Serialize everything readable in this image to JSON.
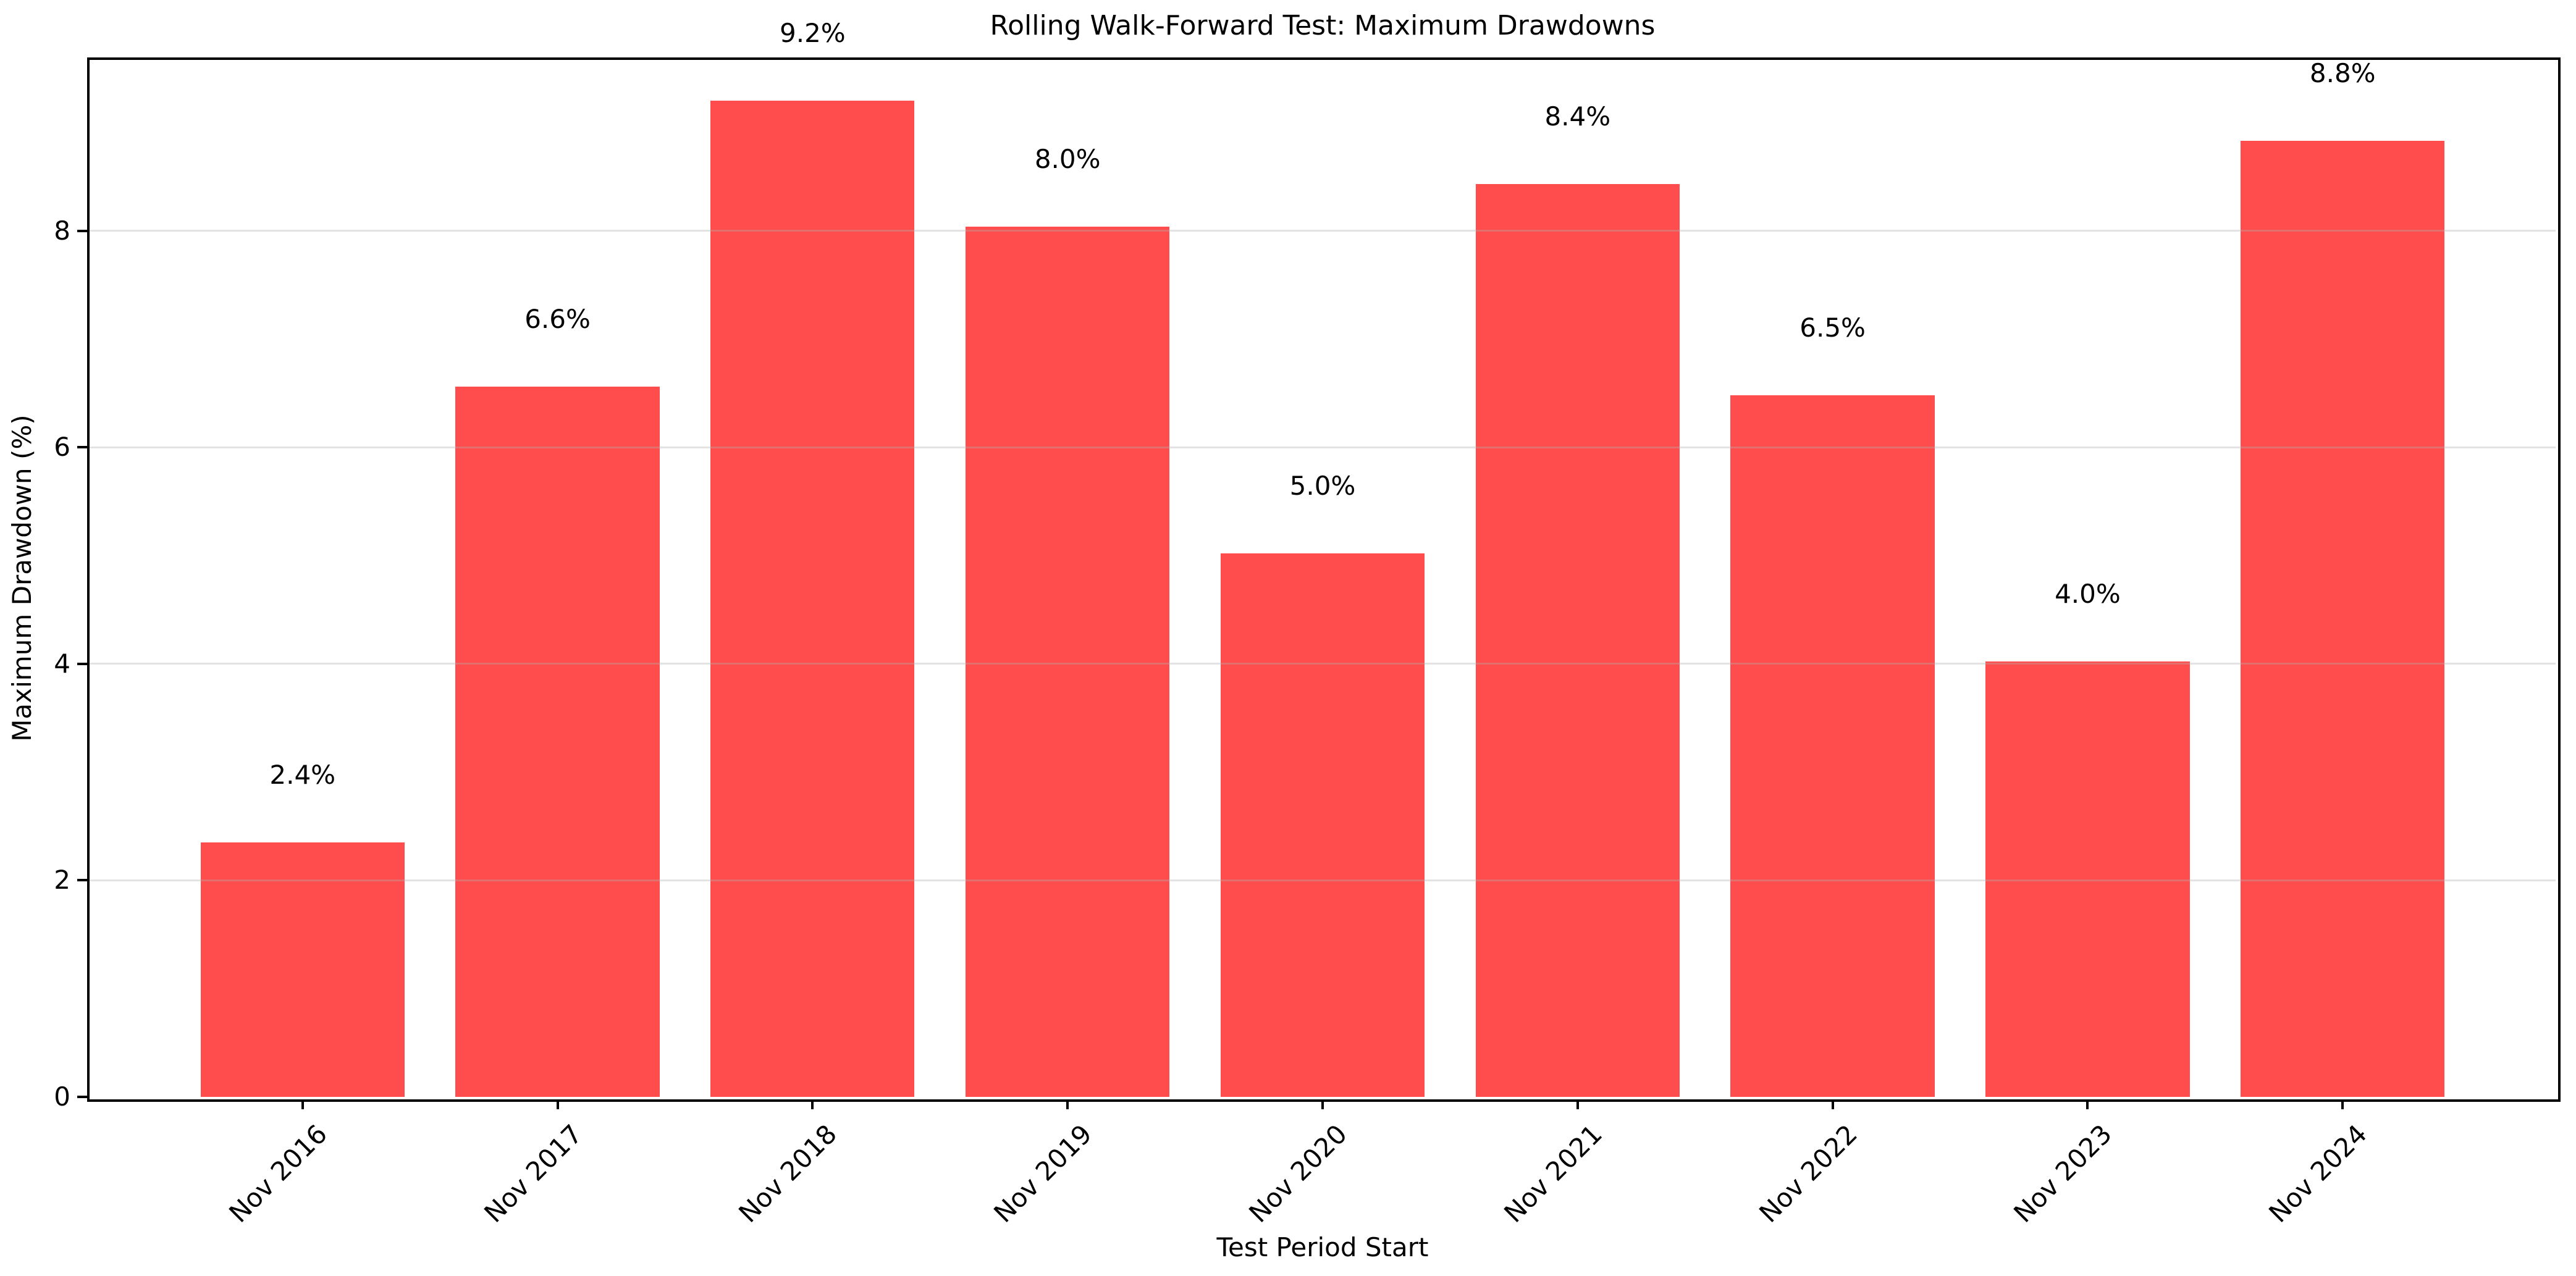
{
  "chart_data": {
    "type": "bar",
    "title": "Rolling Walk-Forward Test: Maximum Drawdowns",
    "xlabel": "Test Period Start",
    "ylabel": "Maximum Drawdown (%)",
    "categories": [
      "Nov 2016",
      "Nov 2017",
      "Nov 2018",
      "Nov 2019",
      "Nov 2020",
      "Nov 2021",
      "Nov 2022",
      "Nov 2023",
      "Nov 2024"
    ],
    "values": [
      2.35,
      6.56,
      9.2,
      8.04,
      5.02,
      8.43,
      6.48,
      4.02,
      8.83
    ],
    "bar_labels": [
      "2.4%",
      "6.6%",
      "9.2%",
      "8.0%",
      "5.0%",
      "8.4%",
      "6.5%",
      "4.0%",
      "8.8%"
    ],
    "yticks": [
      "0",
      "2",
      "4",
      "6",
      "8"
    ],
    "ylim": [
      0,
      9.59
    ],
    "bar_color": "#FF4D4D",
    "grid": true,
    "grid_color": "#B0B0B0",
    "spine_color": "#000000",
    "xtick_rotation": 45,
    "legend": "none"
  }
}
